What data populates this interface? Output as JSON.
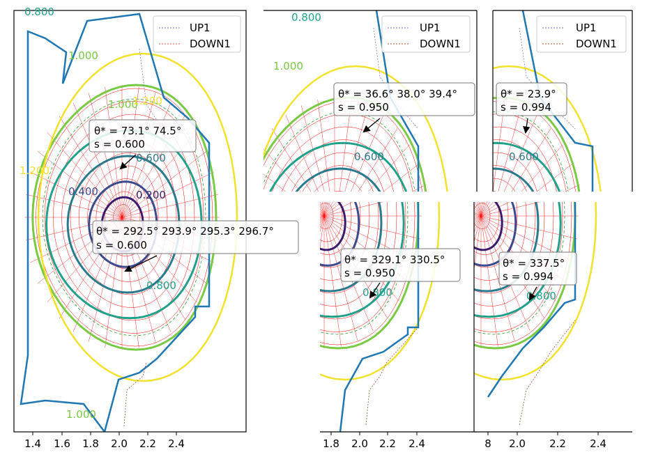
{
  "chart_data": [
    {
      "type": "line",
      "panel": "left",
      "x_ticks": [
        "1.4",
        "1.6",
        "1.8",
        "2.0",
        "2.2",
        "2.4"
      ],
      "legend": [
        "UP1",
        "DOWN1"
      ],
      "contour_labels": [
        "0.800",
        "1.000",
        "1.000",
        "1.200",
        "1.200",
        "0.600",
        "0.400",
        "0.200",
        "0.800",
        "1.000"
      ],
      "annotations": [
        {
          "line1": "θ* = 73.1° 74.5°",
          "line2": "s = 0.600"
        },
        {
          "line1": "θ* = 292.5° 293.9° 295.3° 296.7°",
          "line2": "s = 0.600"
        }
      ]
    },
    {
      "type": "line",
      "panel": "top-middle",
      "legend": [
        "UP1",
        "DOWN1"
      ],
      "contour_labels": [
        "0.800",
        "1.000",
        "0.600"
      ],
      "annotations": [
        {
          "line1": "θ* = 36.6° 38.0° 39.4°",
          "line2": "s = 0.950"
        }
      ]
    },
    {
      "type": "line",
      "panel": "top-right",
      "legend": [
        "UP1",
        "DOWN1"
      ],
      "contour_labels": [
        "0.600"
      ],
      "annotations": [
        {
          "line1": "θ* = 23.9°",
          "line2": "s = 0.994"
        }
      ]
    },
    {
      "type": "line",
      "panel": "bottom-middle",
      "x_ticks": [
        "1.8",
        "2.0",
        "2.2",
        "2.4"
      ],
      "contour_labels": [
        "0.800"
      ],
      "annotations": [
        {
          "line1": "θ* = 329.1° 330.5°",
          "line2": "s = 0.950"
        }
      ]
    },
    {
      "type": "line",
      "panel": "bottom-right",
      "x_ticks": [
        "8",
        "2.0",
        "2.2",
        "2.4"
      ],
      "contour_labels": [
        "0.800"
      ],
      "annotations": [
        {
          "line1": "θ* = 337.5°",
          "line2": "s = 0.994"
        }
      ]
    }
  ],
  "colors": {
    "wall": "#1f77b4",
    "grid_red": "#ff0000",
    "up1": "#8a6fd1",
    "down1": "#a0522d",
    "c020": "#3b1a6e",
    "c040": "#3a4a8c",
    "c060": "#2a7a8c",
    "c080": "#21a08a",
    "c100": "#7ac943",
    "c120": "#f2e22e",
    "green_dash": "#2ca02c"
  }
}
